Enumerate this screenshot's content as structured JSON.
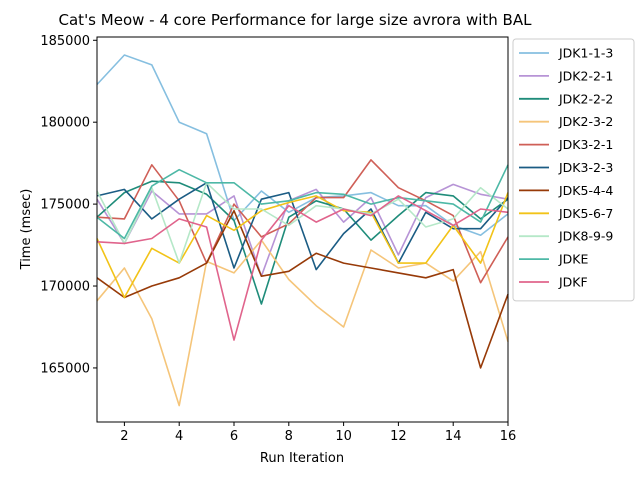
{
  "chart_data": {
    "type": "line",
    "title": "Cat's Meow - 4 core Performance for large size avrora with BAL",
    "xlabel": "Run Iteration",
    "ylabel": "Time (msec)",
    "xlim": [
      1,
      16
    ],
    "ylim": [
      161700,
      185200
    ],
    "xticks": [
      2,
      4,
      6,
      8,
      10,
      12,
      14,
      16
    ],
    "yticks": [
      165000,
      170000,
      175000,
      180000,
      185000
    ],
    "legend_position": "outside-right",
    "grid": false,
    "x": [
      1,
      2,
      3,
      4,
      5,
      6,
      7,
      8,
      9,
      10,
      11,
      12,
      13,
      14,
      15,
      16
    ],
    "series": [
      {
        "name": "JDK1-1-3",
        "color": "#86bfe0",
        "values": [
          182300,
          184100,
          183500,
          180000,
          179300,
          174000,
          175800,
          174500,
          175400,
          175500,
          175700,
          174900,
          174900,
          173700,
          173100,
          174400
        ]
      },
      {
        "name": "JDK2-2-1",
        "color": "#b794d6",
        "values": [
          175300,
          172600,
          175800,
          174400,
          174400,
          175500,
          170600,
          175200,
          175900,
          173900,
          175400,
          171900,
          175400,
          176200,
          175600,
          175300
        ]
      },
      {
        "name": "JDK2-2-2",
        "color": "#1f8c7a",
        "values": [
          174200,
          175700,
          176400,
          176300,
          175600,
          174000,
          168900,
          174200,
          175200,
          174700,
          172800,
          174300,
          175700,
          175500,
          174100,
          175300
        ]
      },
      {
        "name": "JDK2-3-2",
        "color": "#f5c57a",
        "values": [
          169100,
          171100,
          168000,
          162700,
          171500,
          170800,
          172800,
          170400,
          168800,
          167500,
          172200,
          171100,
          171400,
          170300,
          172100,
          166600
        ]
      },
      {
        "name": "JDK3-2-1",
        "color": "#cf5f57",
        "values": [
          174200,
          174100,
          177400,
          175200,
          171400,
          175000,
          173000,
          173800,
          175400,
          175400,
          177700,
          176000,
          175200,
          174300,
          170200,
          173000
        ]
      },
      {
        "name": "JDK3-2-3",
        "color": "#1b5c84",
        "values": [
          175500,
          175900,
          174100,
          175300,
          176300,
          171100,
          175300,
          175700,
          171000,
          173200,
          174700,
          171400,
          174500,
          173500,
          173500,
          175400
        ]
      },
      {
        "name": "JDK5-4-4",
        "color": "#973a08",
        "values": [
          170500,
          169300,
          170000,
          170500,
          171400,
          174600,
          170600,
          170900,
          172000,
          171400,
          171100,
          170800,
          170500,
          171000,
          165000,
          169500
        ]
      },
      {
        "name": "JDK5-6-7",
        "color": "#f2c318",
        "values": [
          172900,
          169300,
          172300,
          171400,
          174300,
          173400,
          174600,
          175100,
          175500,
          174600,
          174500,
          171400,
          171400,
          173700,
          171400,
          175700
        ]
      },
      {
        "name": "JDK8-9-9",
        "color": "#b5e8c8",
        "values": [
          175800,
          172600,
          176000,
          171400,
          176300,
          174700,
          174700,
          173700,
          174900,
          174700,
          174400,
          175300,
          173600,
          174100,
          176000,
          174700
        ]
      },
      {
        "name": "JDKE",
        "color": "#4db8a6",
        "values": [
          174200,
          172900,
          176100,
          177100,
          176300,
          176300,
          175000,
          175200,
          175700,
          175600,
          175000,
          175400,
          175200,
          175000,
          173900,
          177400
        ]
      },
      {
        "name": "JDKF",
        "color": "#e0648c",
        "values": [
          172700,
          172600,
          172900,
          174100,
          173600,
          166700,
          172800,
          174900,
          173900,
          174700,
          174300,
          175500,
          174600,
          173700,
          174700,
          174500
        ]
      }
    ]
  }
}
